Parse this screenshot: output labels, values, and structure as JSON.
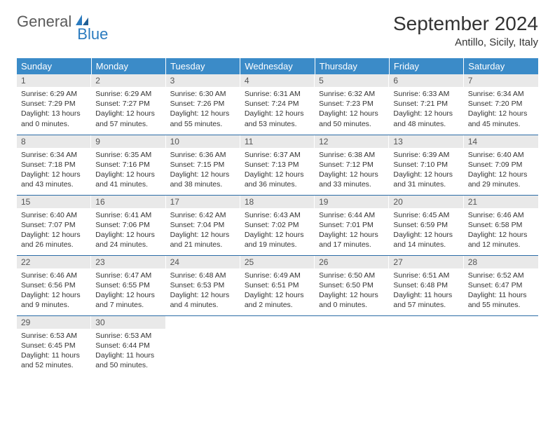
{
  "brand": {
    "word1": "General",
    "word2": "Blue"
  },
  "title": "September 2024",
  "location": "Antillo, Sicily, Italy",
  "colors": {
    "header_bg": "#3b8bc8",
    "header_text": "#ffffff",
    "daynum_bg": "#e9e9e9",
    "row_border": "#2b6ca6",
    "logo_gray": "#5a5a5a",
    "logo_blue": "#2b7bbf"
  },
  "weekdays": [
    "Sunday",
    "Monday",
    "Tuesday",
    "Wednesday",
    "Thursday",
    "Friday",
    "Saturday"
  ],
  "weeks": [
    [
      {
        "n": "1",
        "sunrise": "6:29 AM",
        "sunset": "7:29 PM",
        "daylight": "13 hours and 0 minutes."
      },
      {
        "n": "2",
        "sunrise": "6:29 AM",
        "sunset": "7:27 PM",
        "daylight": "12 hours and 57 minutes."
      },
      {
        "n": "3",
        "sunrise": "6:30 AM",
        "sunset": "7:26 PM",
        "daylight": "12 hours and 55 minutes."
      },
      {
        "n": "4",
        "sunrise": "6:31 AM",
        "sunset": "7:24 PM",
        "daylight": "12 hours and 53 minutes."
      },
      {
        "n": "5",
        "sunrise": "6:32 AM",
        "sunset": "7:23 PM",
        "daylight": "12 hours and 50 minutes."
      },
      {
        "n": "6",
        "sunrise": "6:33 AM",
        "sunset": "7:21 PM",
        "daylight": "12 hours and 48 minutes."
      },
      {
        "n": "7",
        "sunrise": "6:34 AM",
        "sunset": "7:20 PM",
        "daylight": "12 hours and 45 minutes."
      }
    ],
    [
      {
        "n": "8",
        "sunrise": "6:34 AM",
        "sunset": "7:18 PM",
        "daylight": "12 hours and 43 minutes."
      },
      {
        "n": "9",
        "sunrise": "6:35 AM",
        "sunset": "7:16 PM",
        "daylight": "12 hours and 41 minutes."
      },
      {
        "n": "10",
        "sunrise": "6:36 AM",
        "sunset": "7:15 PM",
        "daylight": "12 hours and 38 minutes."
      },
      {
        "n": "11",
        "sunrise": "6:37 AM",
        "sunset": "7:13 PM",
        "daylight": "12 hours and 36 minutes."
      },
      {
        "n": "12",
        "sunrise": "6:38 AM",
        "sunset": "7:12 PM",
        "daylight": "12 hours and 33 minutes."
      },
      {
        "n": "13",
        "sunrise": "6:39 AM",
        "sunset": "7:10 PM",
        "daylight": "12 hours and 31 minutes."
      },
      {
        "n": "14",
        "sunrise": "6:40 AM",
        "sunset": "7:09 PM",
        "daylight": "12 hours and 29 minutes."
      }
    ],
    [
      {
        "n": "15",
        "sunrise": "6:40 AM",
        "sunset": "7:07 PM",
        "daylight": "12 hours and 26 minutes."
      },
      {
        "n": "16",
        "sunrise": "6:41 AM",
        "sunset": "7:06 PM",
        "daylight": "12 hours and 24 minutes."
      },
      {
        "n": "17",
        "sunrise": "6:42 AM",
        "sunset": "7:04 PM",
        "daylight": "12 hours and 21 minutes."
      },
      {
        "n": "18",
        "sunrise": "6:43 AM",
        "sunset": "7:02 PM",
        "daylight": "12 hours and 19 minutes."
      },
      {
        "n": "19",
        "sunrise": "6:44 AM",
        "sunset": "7:01 PM",
        "daylight": "12 hours and 17 minutes."
      },
      {
        "n": "20",
        "sunrise": "6:45 AM",
        "sunset": "6:59 PM",
        "daylight": "12 hours and 14 minutes."
      },
      {
        "n": "21",
        "sunrise": "6:46 AM",
        "sunset": "6:58 PM",
        "daylight": "12 hours and 12 minutes."
      }
    ],
    [
      {
        "n": "22",
        "sunrise": "6:46 AM",
        "sunset": "6:56 PM",
        "daylight": "12 hours and 9 minutes."
      },
      {
        "n": "23",
        "sunrise": "6:47 AM",
        "sunset": "6:55 PM",
        "daylight": "12 hours and 7 minutes."
      },
      {
        "n": "24",
        "sunrise": "6:48 AM",
        "sunset": "6:53 PM",
        "daylight": "12 hours and 4 minutes."
      },
      {
        "n": "25",
        "sunrise": "6:49 AM",
        "sunset": "6:51 PM",
        "daylight": "12 hours and 2 minutes."
      },
      {
        "n": "26",
        "sunrise": "6:50 AM",
        "sunset": "6:50 PM",
        "daylight": "12 hours and 0 minutes."
      },
      {
        "n": "27",
        "sunrise": "6:51 AM",
        "sunset": "6:48 PM",
        "daylight": "11 hours and 57 minutes."
      },
      {
        "n": "28",
        "sunrise": "6:52 AM",
        "sunset": "6:47 PM",
        "daylight": "11 hours and 55 minutes."
      }
    ],
    [
      {
        "n": "29",
        "sunrise": "6:53 AM",
        "sunset": "6:45 PM",
        "daylight": "11 hours and 52 minutes."
      },
      {
        "n": "30",
        "sunrise": "6:53 AM",
        "sunset": "6:44 PM",
        "daylight": "11 hours and 50 minutes."
      },
      null,
      null,
      null,
      null,
      null
    ]
  ],
  "labels": {
    "sunrise": "Sunrise:",
    "sunset": "Sunset:",
    "daylight": "Daylight:"
  }
}
